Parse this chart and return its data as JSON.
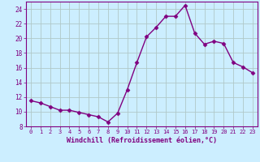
{
  "x": [
    0,
    1,
    2,
    3,
    4,
    5,
    6,
    7,
    8,
    9,
    10,
    11,
    12,
    13,
    14,
    15,
    16,
    17,
    18,
    19,
    20,
    21,
    22,
    23
  ],
  "y": [
    11.5,
    11.2,
    10.7,
    10.2,
    10.2,
    9.9,
    9.6,
    9.3,
    8.6,
    9.8,
    13.0,
    16.7,
    20.2,
    21.5,
    23.0,
    23.0,
    24.5,
    20.7,
    19.2,
    19.6,
    19.3,
    16.7,
    16.1,
    15.3
  ],
  "line_color": "#800080",
  "marker": "D",
  "marker_size": 2.5,
  "bg_color": "#cceeff",
  "grid_color": "#b0c8c8",
  "xlabel": "Windchill (Refroidissement éolien,°C)",
  "xlabel_color": "#800080",
  "tick_color": "#800080",
  "xlim": [
    -0.5,
    23.5
  ],
  "ylim": [
    8,
    25
  ],
  "yticks": [
    8,
    10,
    12,
    14,
    16,
    18,
    20,
    22,
    24
  ],
  "xticks": [
    0,
    1,
    2,
    3,
    4,
    5,
    6,
    7,
    8,
    9,
    10,
    11,
    12,
    13,
    14,
    15,
    16,
    17,
    18,
    19,
    20,
    21,
    22,
    23
  ],
  "spine_color": "#800080",
  "linewidth": 1.0
}
